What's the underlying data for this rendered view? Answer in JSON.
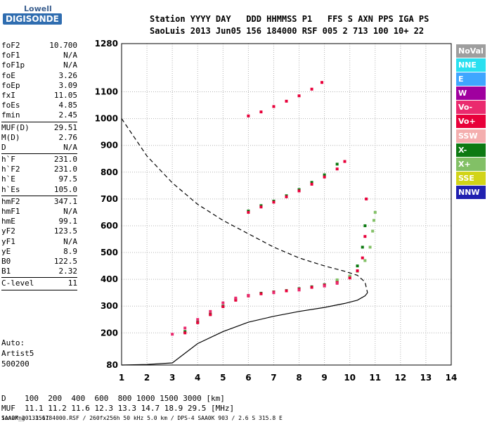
{
  "logo": {
    "line1": "Lowell",
    "line2": "DIGISONDE"
  },
  "header": {
    "line1": "Station YYYY DAY   DDD HHMMSS P1   FFS S AXN PPS IGA PS",
    "line2": "SaoLuis 2013 Jun05 156 184000 RSF 005 2 713 100 10+ 22"
  },
  "scaled": {
    "group1": [
      {
        "k": "foF2",
        "v": "10.700"
      },
      {
        "k": "foF1",
        "v": "N/A"
      },
      {
        "k": "foF1p",
        "v": "N/A"
      },
      {
        "k": "foE",
        "v": "3.26"
      },
      {
        "k": "foEp",
        "v": "3.09"
      },
      {
        "k": "fxI",
        "v": "11.05"
      },
      {
        "k": "foEs",
        "v": "4.85"
      },
      {
        "k": "fmin",
        "v": "2.45"
      }
    ],
    "group2": [
      {
        "k": "MUF(D)",
        "v": "29.51"
      },
      {
        "k": "M(D)",
        "v": "2.76"
      },
      {
        "k": "D",
        "v": "N/A"
      }
    ],
    "group3": [
      {
        "k": "h`F",
        "v": "231.0"
      },
      {
        "k": "h`F2",
        "v": "231.0"
      },
      {
        "k": "h`E",
        "v": "97.5"
      },
      {
        "k": "h`Es",
        "v": "105.0"
      }
    ],
    "group4": [
      {
        "k": "hmF2",
        "v": "347.1"
      },
      {
        "k": "hmF1",
        "v": "N/A"
      },
      {
        "k": "hmE",
        "v": "99.1"
      },
      {
        "k": "yF2",
        "v": "123.5"
      },
      {
        "k": "yF1",
        "v": "N/A"
      },
      {
        "k": "yE",
        "v": "8.9"
      },
      {
        "k": "B0",
        "v": "122.5"
      },
      {
        "k": "B1",
        "v": "2.32"
      }
    ],
    "group5": [
      {
        "k": "C-level",
        "v": "11"
      }
    ]
  },
  "autoscale": {
    "line1": "Auto:",
    "line2": "Artist5",
    "line3": "500200"
  },
  "footer": {
    "line1": "D    100  200  400  600  800 1000 1500 3000 [km]",
    "line2": "MUF  11.1 11.2 11.6 12.3 13.3 14.7 18.9 29.5 [MHz]",
    "line3": "SAA0K_2013156184000.RSF / 260fx256h 50 kHz 5.0 km / DPS-4 SAA0K 903 / 2.6 S 315.8 E",
    "line4": "Ion2Png 1.3.17"
  },
  "legend": [
    {
      "name": "NoVal",
      "color": "#9e9e9e"
    },
    {
      "name": "NNE",
      "color": "#29e0f0"
    },
    {
      "name": "E",
      "color": "#3fa6ff"
    },
    {
      "name": "W",
      "color": "#a0009f"
    },
    {
      "name": "Vo-",
      "color": "#ea2a6e"
    },
    {
      "name": "Vo+",
      "color": "#e8003a"
    },
    {
      "name": "SSW",
      "color": "#f4aeae"
    },
    {
      "name": "X-",
      "color": "#0d7a12"
    },
    {
      "name": "X+",
      "color": "#82c066"
    },
    {
      "name": "SSE",
      "color": "#d2d418"
    },
    {
      "name": "NNW",
      "color": "#2020b0"
    }
  ],
  "chart_data": {
    "type": "scatter",
    "title": "",
    "xlabel": "",
    "ylabel": "",
    "xlim": [
      1,
      14
    ],
    "ylim": [
      80,
      1280
    ],
    "x_ticks": [
      1,
      2,
      3,
      4,
      5,
      6,
      7,
      8,
      9,
      10,
      11,
      12,
      13,
      14
    ],
    "y_ticks": [
      80,
      200,
      300,
      400,
      500,
      600,
      700,
      800,
      900,
      1000,
      1100,
      1280
    ],
    "grid": true,
    "legend_placement": "right",
    "series": [
      {
        "name": "X-",
        "color": "#0d7a12",
        "x": [
          3.5,
          4.0,
          4.5,
          5.0,
          5.5,
          6.0,
          6.5,
          7.0,
          7.5,
          8.0,
          8.5,
          9.0,
          9.5,
          10.0,
          10.3,
          10.5,
          10.6,
          6.0,
          6.5,
          7.0,
          7.5,
          8.0,
          8.5,
          9.0,
          9.5
        ],
        "y": [
          205,
          240,
          270,
          300,
          325,
          340,
          348,
          353,
          358,
          365,
          372,
          380,
          392,
          410,
          450,
          520,
          600,
          655,
          675,
          692,
          712,
          735,
          762,
          790,
          830
        ]
      },
      {
        "name": "X+",
        "color": "#82c066",
        "x": [
          9.5,
          10.0,
          10.3,
          10.6,
          10.8,
          10.9,
          10.95,
          11.0
        ],
        "y": [
          398,
          412,
          430,
          470,
          520,
          580,
          620,
          650
        ]
      },
      {
        "name": "Vo+",
        "color": "#e8003a",
        "x": [
          3.5,
          4.0,
          4.5,
          5.0,
          5.5,
          6.0,
          6.5,
          7.0,
          7.5,
          8.0,
          8.5,
          9.0,
          9.5,
          10.0,
          10.3,
          10.5,
          10.6,
          10.65,
          6.0,
          6.5,
          7.0,
          7.5,
          8.0,
          8.5,
          9.0,
          9.5,
          9.8,
          6.0,
          6.5,
          7.0,
          7.5,
          8.0,
          8.5,
          8.9
        ],
        "y": [
          200,
          238,
          268,
          298,
          322,
          338,
          346,
          352,
          357,
          363,
          370,
          378,
          388,
          405,
          432,
          480,
          560,
          700,
          650,
          670,
          688,
          708,
          730,
          755,
          782,
          812,
          840,
          1010,
          1025,
          1045,
          1065,
          1085,
          1110,
          1135
        ]
      },
      {
        "name": "Vo-",
        "color": "#ea2a6e",
        "x": [
          3.0,
          3.5,
          4.0,
          4.5,
          5.0,
          5.5,
          6.0,
          7.0,
          8.0,
          9.0,
          9.5
        ],
        "y": [
          195,
          218,
          250,
          280,
          312,
          330,
          340,
          350,
          360,
          375,
          385
        ]
      }
    ],
    "profile_solid": {
      "name": "",
      "x": [
        1,
        2,
        3,
        4,
        5,
        6,
        7,
        8,
        9,
        9.8,
        10.3,
        10.6,
        10.7
      ],
      "y": [
        80,
        82,
        88,
        160,
        205,
        240,
        262,
        280,
        295,
        310,
        322,
        338,
        350
      ]
    },
    "profile_dashed": {
      "name": "",
      "x": [
        1,
        2,
        3,
        4,
        5,
        6,
        7,
        8,
        9,
        9.8,
        10.3,
        10.6,
        10.7
      ],
      "y": [
        1000,
        860,
        760,
        680,
        620,
        570,
        520,
        480,
        450,
        430,
        415,
        390,
        350
      ]
    }
  }
}
